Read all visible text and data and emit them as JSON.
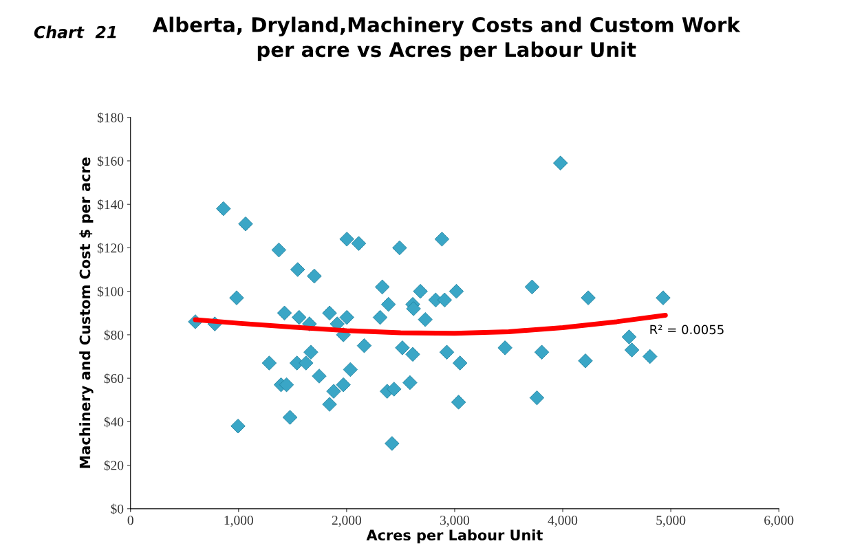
{
  "chart_data": {
    "type": "scatter",
    "title": "Alberta, Dryland,Machinery Costs and Custom Work\nper acre vs Acres per Labour Unit",
    "xlabel": "Acres per Labour Unit",
    "ylabel": "Machinery and Custom Cost $ per acre",
    "annotations": [
      "Chart  21",
      "R² = 0.0055"
    ],
    "xlim": [
      0,
      6000
    ],
    "xticks": [
      0,
      {
        "value": 1000,
        "label": "1,000"
      },
      {
        "value": 2000,
        "label": "2,000"
      },
      {
        "value": 3000,
        "label": "3,000"
      },
      {
        "value": 4000,
        "label": "4,000"
      },
      {
        "value": 5000,
        "label": "5,000"
      },
      {
        "value": 6000,
        "label": "6,000"
      }
    ],
    "ylim": [
      0,
      180
    ],
    "yticks": [
      {
        "value": 0,
        "label": "$0"
      },
      {
        "value": 20,
        "label": "$20"
      },
      {
        "value": 40,
        "label": "$40"
      },
      {
        "value": 60,
        "label": "$60"
      },
      {
        "value": 80,
        "label": "$80"
      },
      {
        "value": 100,
        "label": "$100"
      },
      {
        "value": 120,
        "label": "$120"
      },
      {
        "value": 140,
        "label": "$140"
      },
      {
        "value": 160,
        "label": "$160"
      },
      {
        "value": 180,
        "label": "$180"
      }
    ],
    "grid": false,
    "legend": false,
    "series": [
      {
        "marker": "diamond",
        "color": "#3aa6c6",
        "x": [
          600,
          780,
          860,
          1065,
          1373,
          982,
          1547,
          1701,
          1425,
          1560,
          1656,
          1842,
          2002,
          2112,
          2490,
          2882,
          2330,
          2683,
          2824,
          2907,
          3016,
          2387,
          2310,
          2612,
          2619,
          2728,
          1913,
          2002,
          1970,
          2163,
          2516,
          2612,
          2927,
          3049,
          1669,
          1540,
          1624,
          1284,
          1746,
          2035,
          1393,
          1444,
          1880,
          1970,
          2375,
          2439,
          2586,
          1842,
          1476,
          995,
          2420,
          3036,
          3979,
          3716,
          4236,
          4929,
          4614,
          3466,
          3806,
          4210,
          4640,
          4807,
          3761
        ],
        "values": [
          86,
          85,
          138,
          131,
          119,
          97,
          110,
          107,
          90,
          88,
          85,
          90,
          124,
          122,
          120,
          124,
          102,
          100,
          96,
          96,
          100,
          94,
          88,
          94,
          92,
          87,
          85,
          88,
          80,
          75,
          74,
          71,
          72,
          67,
          72,
          67,
          67,
          67,
          61,
          64,
          57,
          57,
          54,
          57,
          54,
          55,
          58,
          48,
          42,
          38,
          30,
          49,
          159,
          102,
          97,
          97,
          79,
          74,
          72,
          68,
          73,
          70,
          51
        ]
      },
      {
        "type": "line",
        "marker": "none",
        "line_style": "solid",
        "color": "#ff0000",
        "x": [
          600,
          1000,
          1500,
          2000,
          2500,
          3000,
          3500,
          4000,
          4500,
          4950
        ],
        "values": [
          86.9,
          85.3,
          83.5,
          81.9,
          80.9,
          80.7,
          81.4,
          83.3,
          86,
          89
        ]
      }
    ]
  }
}
